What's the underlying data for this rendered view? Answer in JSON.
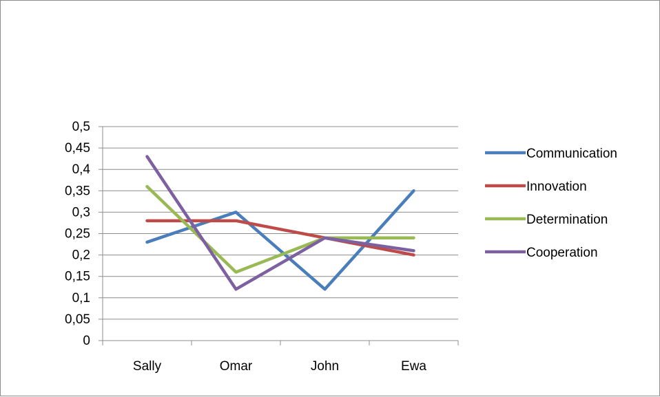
{
  "chart_data": {
    "type": "line",
    "categories": [
      "Sally",
      "Omar",
      "John",
      "Ewa"
    ],
    "ylim": [
      0,
      0.5
    ],
    "y_ticks": [
      "0",
      "0,05",
      "0,1",
      "0,15",
      "0,2",
      "0,25",
      "0,3",
      "0,35",
      "0,4",
      "0,45",
      "0,5"
    ],
    "grid": true,
    "legend_position": "right",
    "series": [
      {
        "name": "Communication",
        "color": "#4a7ebb",
        "values": [
          0.23,
          0.3,
          0.12,
          0.35
        ]
      },
      {
        "name": "Innovation",
        "color": "#be4b48",
        "values": [
          0.28,
          0.28,
          0.24,
          0.2
        ]
      },
      {
        "name": "Determination",
        "color": "#98b954",
        "values": [
          0.36,
          0.16,
          0.24,
          0.24
        ]
      },
      {
        "name": "Cooperation",
        "color": "#7d60a0",
        "values": [
          0.43,
          0.12,
          0.24,
          0.21
        ]
      }
    ]
  }
}
